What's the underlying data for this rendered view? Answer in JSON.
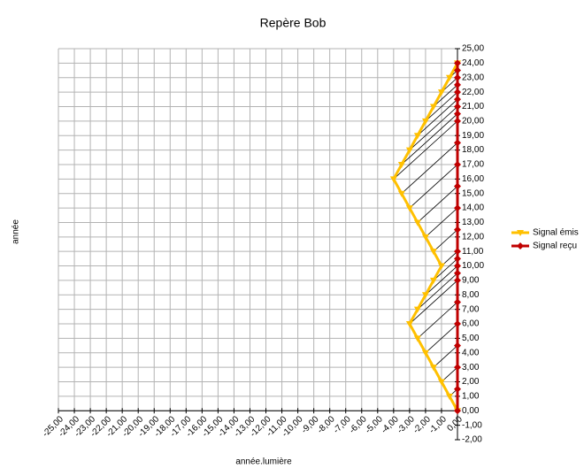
{
  "chart_data": {
    "type": "line",
    "title": "Repère Bob",
    "x_label": "année.lumière",
    "y_label": "année",
    "xlim": [
      -25,
      0
    ],
    "ylim": [
      -2,
      25
    ],
    "grid": true,
    "legend": "right",
    "xticks": [
      {
        "value": -25,
        "label": "-25,00"
      },
      {
        "value": -24,
        "label": "-24,00"
      },
      {
        "value": -23,
        "label": "-23,00"
      },
      {
        "value": -22,
        "label": "-22,00"
      },
      {
        "value": -21,
        "label": "-21,00"
      },
      {
        "value": -20,
        "label": "-20,00"
      },
      {
        "value": -19,
        "label": "-19,00"
      },
      {
        "value": -18,
        "label": "-18,00"
      },
      {
        "value": -17,
        "label": "-17,00"
      },
      {
        "value": -16,
        "label": "-16,00"
      },
      {
        "value": -15,
        "label": "-15,00"
      },
      {
        "value": -14,
        "label": "-14,00"
      },
      {
        "value": -13,
        "label": "-13,00"
      },
      {
        "value": -12,
        "label": "-12,00"
      },
      {
        "value": -11,
        "label": "-11,00"
      },
      {
        "value": -10,
        "label": "-10,00"
      },
      {
        "value": -9,
        "label": "-9,00"
      },
      {
        "value": -8,
        "label": "-8,00"
      },
      {
        "value": -7,
        "label": "-7,00"
      },
      {
        "value": -6,
        "label": "-6,00"
      },
      {
        "value": -5,
        "label": "-5,00"
      },
      {
        "value": -4,
        "label": "-4,00"
      },
      {
        "value": -3,
        "label": "-3,00"
      },
      {
        "value": -2,
        "label": "-2,00"
      },
      {
        "value": -1,
        "label": "-1,00"
      },
      {
        "value": 0,
        "label": "0,00"
      }
    ],
    "yticks": [
      {
        "value": -2,
        "label": "-2,00"
      },
      {
        "value": -1,
        "label": "-1,00"
      },
      {
        "value": 0,
        "label": "0,00"
      },
      {
        "value": 1,
        "label": "1,00"
      },
      {
        "value": 2,
        "label": "2,00"
      },
      {
        "value": 3,
        "label": "3,00"
      },
      {
        "value": 4,
        "label": "4,00"
      },
      {
        "value": 5,
        "label": "5,00"
      },
      {
        "value": 6,
        "label": "6,00"
      },
      {
        "value": 7,
        "label": "7,00"
      },
      {
        "value": 8,
        "label": "8,00"
      },
      {
        "value": 9,
        "label": "9,00"
      },
      {
        "value": 10,
        "label": "10,00"
      },
      {
        "value": 11,
        "label": "11,00"
      },
      {
        "value": 12,
        "label": "12,00"
      },
      {
        "value": 13,
        "label": "13,00"
      },
      {
        "value": 14,
        "label": "14,00"
      },
      {
        "value": 15,
        "label": "15,00"
      },
      {
        "value": 16,
        "label": "16,00"
      },
      {
        "value": 17,
        "label": "17,00"
      },
      {
        "value": 18,
        "label": "18,00"
      },
      {
        "value": 19,
        "label": "19,00"
      },
      {
        "value": 20,
        "label": "20,00"
      },
      {
        "value": 21,
        "label": "21,00"
      },
      {
        "value": 22,
        "label": "22,00"
      },
      {
        "value": 23,
        "label": "23,00"
      },
      {
        "value": 24,
        "label": "24,00"
      },
      {
        "value": 25,
        "label": "25,00"
      }
    ],
    "series": [
      {
        "name": "Signal émis",
        "color": "#ffc000",
        "x": [
          0,
          -0.5,
          -1,
          -1.5,
          -2,
          -2.5,
          -3,
          -2.5,
          -2,
          -1.5,
          -1,
          -1.5,
          -2,
          -2.5,
          -3,
          -3.5,
          -4,
          -3.5,
          -3,
          -2.5,
          -2,
          -1.5,
          -1,
          -0.5,
          0
        ],
        "values": [
          0,
          1,
          2,
          3,
          4,
          5,
          6,
          7,
          8,
          9,
          10,
          11,
          12,
          13,
          14,
          15,
          16,
          17,
          18,
          19,
          20,
          21,
          22,
          23,
          24
        ]
      },
      {
        "name": "Signal reçu",
        "color": "#c00000",
        "x": [
          0,
          0,
          0,
          0,
          0,
          0,
          0,
          0,
          0,
          0,
          0,
          0,
          0,
          0,
          0,
          0,
          0,
          0,
          0,
          0,
          0,
          0,
          0,
          0,
          0
        ],
        "values": [
          0,
          1.5,
          3,
          4.5,
          6,
          7.5,
          9,
          9.5,
          10,
          10.5,
          11,
          12.5,
          14,
          15.5,
          17,
          18.5,
          20,
          20.5,
          21,
          21.5,
          22,
          22.5,
          23,
          23.5,
          24
        ]
      }
    ]
  }
}
